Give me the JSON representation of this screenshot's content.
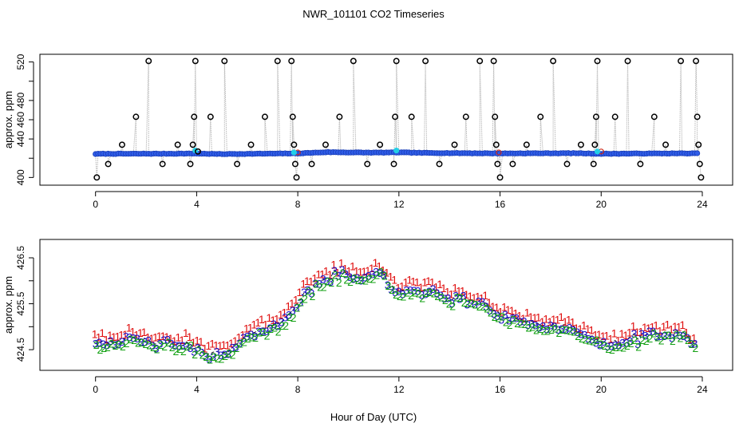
{
  "figure": {
    "title": "NWR_101101  CO2 Timeseries",
    "xlabel": "Hour of Day (UTC)"
  },
  "chart_data": [
    {
      "type": "scatter",
      "name": "top-panel",
      "title": "NWR_101101  CO2 Timeseries",
      "xlabel": "",
      "ylabel": "approx. ppm",
      "xlim": [
        -2.2,
        25.2
      ],
      "ylim": [
        392,
        528
      ],
      "xticks": [
        0,
        4,
        8,
        12,
        16,
        20,
        24
      ],
      "yticks": [
        400,
        420,
        440,
        460,
        480,
        500,
        520
      ],
      "ytick_labels_shown": [
        "400",
        "",
        "440",
        "460",
        "480",
        "",
        "520"
      ],
      "colors": {
        "line": "#b8b8b8",
        "marker": "#000000",
        "base_fill": "#2f5ce8",
        "base_stroke": "#1a3fb8",
        "cyan": "#22cfe6",
        "red": "#cc2a1a"
      },
      "baseline": {
        "x_start": 0.0,
        "x_end": 23.85,
        "step": 0.1,
        "anchors": [
          [
            0,
            424.5
          ],
          [
            4,
            424.8
          ],
          [
            5,
            424.3
          ],
          [
            8,
            425.0
          ],
          [
            9.2,
            426.3
          ],
          [
            10,
            426.0
          ],
          [
            11,
            425.8
          ],
          [
            12,
            426.0
          ],
          [
            13,
            425.5
          ],
          [
            16,
            425.0
          ],
          [
            19,
            425.2
          ],
          [
            20,
            424.6
          ],
          [
            22,
            424.9
          ],
          [
            23.8,
            425.0
          ]
        ]
      },
      "spikes": [
        {
          "x": 0.05,
          "y": 400
        },
        {
          "x": 0.5,
          "y": 414
        },
        {
          "x": 1.05,
          "y": 434
        },
        {
          "x": 1.6,
          "y": 463
        },
        {
          "x": 2.1,
          "y": 521
        },
        {
          "x": 2.65,
          "y": 414
        },
        {
          "x": 3.25,
          "y": 434
        },
        {
          "x": 3.75,
          "y": 414
        },
        {
          "x": 3.85,
          "y": 434
        },
        {
          "x": 3.9,
          "y": 463
        },
        {
          "x": 3.95,
          "y": 521
        },
        {
          "x": 4.05,
          "y": 427
        },
        {
          "x": 4.55,
          "y": 463
        },
        {
          "x": 5.1,
          "y": 521
        },
        {
          "x": 5.6,
          "y": 414
        },
        {
          "x": 6.15,
          "y": 434
        },
        {
          "x": 6.7,
          "y": 463
        },
        {
          "x": 7.2,
          "y": 521
        },
        {
          "x": 7.75,
          "y": 521
        },
        {
          "x": 7.8,
          "y": 463
        },
        {
          "x": 7.85,
          "y": 434
        },
        {
          "x": 7.9,
          "y": 414
        },
        {
          "x": 7.95,
          "y": 400
        },
        {
          "x": 8.55,
          "y": 414
        },
        {
          "x": 9.1,
          "y": 434
        },
        {
          "x": 9.65,
          "y": 463
        },
        {
          "x": 10.2,
          "y": 521
        },
        {
          "x": 10.75,
          "y": 414
        },
        {
          "x": 11.25,
          "y": 434
        },
        {
          "x": 11.8,
          "y": 414
        },
        {
          "x": 11.85,
          "y": 463
        },
        {
          "x": 11.9,
          "y": 521
        },
        {
          "x": 12.5,
          "y": 463
        },
        {
          "x": 13.05,
          "y": 521
        },
        {
          "x": 13.6,
          "y": 414
        },
        {
          "x": 14.2,
          "y": 434
        },
        {
          "x": 14.65,
          "y": 463
        },
        {
          "x": 15.2,
          "y": 521
        },
        {
          "x": 15.75,
          "y": 521
        },
        {
          "x": 15.8,
          "y": 463
        },
        {
          "x": 15.85,
          "y": 434
        },
        {
          "x": 15.9,
          "y": 414
        },
        {
          "x": 16.0,
          "y": 400
        },
        {
          "x": 16.5,
          "y": 414
        },
        {
          "x": 17.05,
          "y": 434
        },
        {
          "x": 17.6,
          "y": 463
        },
        {
          "x": 18.1,
          "y": 521
        },
        {
          "x": 18.65,
          "y": 414
        },
        {
          "x": 19.2,
          "y": 434
        },
        {
          "x": 19.7,
          "y": 414
        },
        {
          "x": 19.75,
          "y": 434
        },
        {
          "x": 19.8,
          "y": 463
        },
        {
          "x": 19.85,
          "y": 521
        },
        {
          "x": 20.55,
          "y": 463
        },
        {
          "x": 21.05,
          "y": 521
        },
        {
          "x": 21.55,
          "y": 414
        },
        {
          "x": 22.1,
          "y": 463
        },
        {
          "x": 22.55,
          "y": 434
        },
        {
          "x": 23.15,
          "y": 521
        },
        {
          "x": 23.75,
          "y": 521
        },
        {
          "x": 23.8,
          "y": 463
        },
        {
          "x": 23.85,
          "y": 434
        },
        {
          "x": 23.9,
          "y": 414
        },
        {
          "x": 23.95,
          "y": 400
        }
      ],
      "cyan_points": [
        {
          "x": 3.95,
          "y": 428
        },
        {
          "x": 7.85,
          "y": 426
        },
        {
          "x": 11.9,
          "y": 428
        },
        {
          "x": 19.85,
          "y": 427
        }
      ],
      "red_points": [
        {
          "x": 4.05,
          "y": 427
        },
        {
          "x": 8.0,
          "y": 426
        },
        {
          "x": 15.95,
          "y": 426
        },
        {
          "x": 20.0,
          "y": 427
        }
      ]
    },
    {
      "type": "line",
      "name": "bottom-panel",
      "xlabel": "Hour of Day (UTC)",
      "ylabel": "approx. ppm",
      "xlim": [
        -2.2,
        25.2
      ],
      "ylim": [
        424.05,
        426.9
      ],
      "xticks": [
        0,
        4,
        8,
        12,
        16,
        20,
        24
      ],
      "yticks": [
        424.5,
        425.0,
        425.5,
        426.0,
        426.5
      ],
      "ytick_labels_shown": [
        "424.5",
        "",
        "425.5",
        "",
        "426.5"
      ],
      "x_start": 0.0,
      "x_end": 23.7,
      "step": 0.15,
      "anchors": [
        [
          0,
          424.68
        ],
        [
          1.5,
          424.72
        ],
        [
          3.5,
          424.62
        ],
        [
          4.2,
          424.52
        ],
        [
          5.0,
          424.38
        ],
        [
          5.6,
          424.6
        ],
        [
          6.4,
          424.98
        ],
        [
          7.2,
          425.02
        ],
        [
          8.0,
          425.55
        ],
        [
          8.8,
          425.98
        ],
        [
          9.5,
          426.18
        ],
        [
          10.3,
          426.08
        ],
        [
          11.3,
          426.22
        ],
        [
          12.0,
          425.72
        ],
        [
          12.8,
          425.85
        ],
        [
          14.0,
          425.65
        ],
        [
          15.0,
          425.58
        ],
        [
          16.0,
          425.3
        ],
        [
          17.5,
          425.05
        ],
        [
          19.0,
          424.95
        ],
        [
          20.0,
          424.62
        ],
        [
          21.0,
          424.72
        ],
        [
          22.0,
          424.88
        ],
        [
          23.3,
          424.82
        ],
        [
          23.7,
          424.55
        ]
      ],
      "series": [
        {
          "name": "1",
          "color": "#e01010",
          "offset": 0.13,
          "size": 14
        },
        {
          "name": "3",
          "color": "#1c10c8",
          "offset": -0.04,
          "size": 14
        },
        {
          "name": "2",
          "color": "#12a012",
          "offset": -0.1,
          "size": 14
        }
      ],
      "line_color": "#1a1a1a"
    }
  ]
}
